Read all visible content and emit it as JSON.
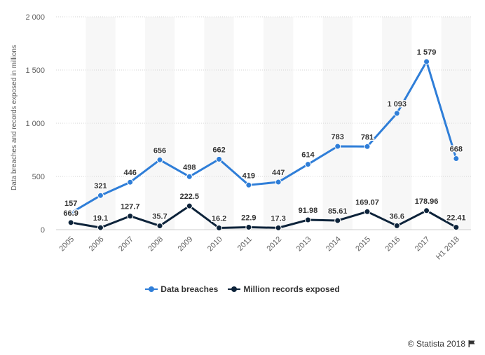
{
  "chart_data": {
    "type": "line",
    "categories": [
      "2005",
      "2006",
      "2007",
      "2008",
      "2009",
      "2010",
      "2011",
      "2012",
      "2013",
      "2014",
      "2015",
      "2016",
      "2017",
      "H1 2018"
    ],
    "series": [
      {
        "name": "Data breaches",
        "color": "#2f7ed8",
        "values": [
          157,
          321,
          446,
          656,
          498,
          662,
          419,
          447,
          614,
          783,
          781,
          1093,
          1579,
          668
        ],
        "labels": [
          "157",
          "321",
          "446",
          "656",
          "498",
          "662",
          "419",
          "447",
          "614",
          "783",
          "781",
          "1 093",
          "1 579",
          "668"
        ]
      },
      {
        "name": "Million records exposed",
        "color": "#0d233a",
        "values": [
          66.9,
          19.1,
          127.7,
          35.7,
          222.5,
          16.2,
          22.9,
          17.3,
          91.98,
          85.61,
          169.07,
          36.6,
          178.96,
          22.41
        ],
        "labels": [
          "66.9",
          "19.1",
          "127.7",
          "35.7",
          "222.5",
          "16.2",
          "22.9",
          "17.3",
          "91.98",
          "85.61",
          "169.07",
          "36.6",
          "178.96",
          "22.41"
        ]
      }
    ],
    "ylabel": "Data breaches and records exposed in millions",
    "ylim": [
      0,
      2000
    ],
    "yticks": [
      0,
      500,
      1000,
      1500,
      2000
    ],
    "ytick_labels": [
      "0",
      "500",
      "1 000",
      "1 500",
      "2 000"
    ],
    "grid": true,
    "legend_position": "bottom"
  },
  "footer": {
    "credit": "© Statista 2018",
    "flag_icon": "flag-icon"
  }
}
